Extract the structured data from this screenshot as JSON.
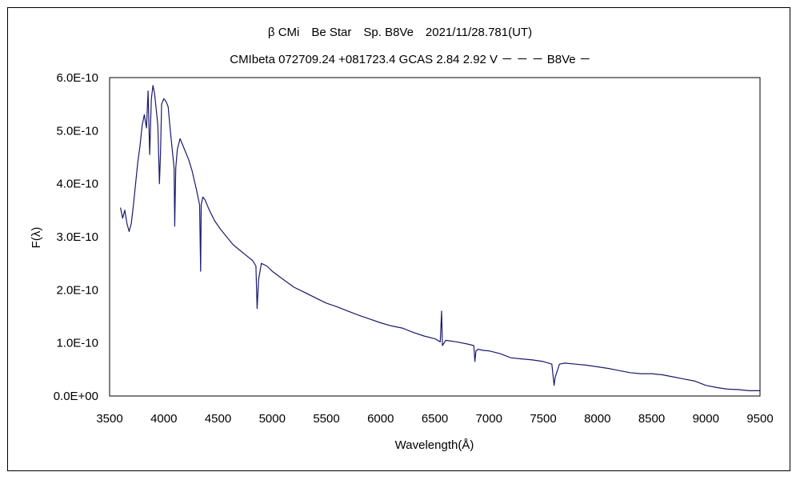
{
  "chart_data": {
    "type": "line",
    "title": "β CMi　Be Star　Sp. B8Ve　2021/11/28.781(UT)",
    "subtitle": "CMIbeta 072709.24 +081723.4 GCAS 2.84 2.92  V － － － B8Ve －",
    "xlabel": "Wavelength(Å)",
    "ylabel": "F(λ)",
    "xlim": [
      3500,
      9500
    ],
    "ylim": [
      0,
      6e-10
    ],
    "x_ticks": [
      "3500",
      "4000",
      "4500",
      "5000",
      "5500",
      "6000",
      "6500",
      "7000",
      "7500",
      "8000",
      "8500",
      "9000",
      "9500"
    ],
    "y_ticks": [
      "0.0E+00",
      "1.0E-10",
      "2.0E-10",
      "3.0E-10",
      "4.0E-10",
      "5.0E-10",
      "6.0E-10"
    ],
    "grid": false,
    "legend": "none",
    "line_color": "#1a1a6e",
    "series": [
      {
        "x": [
          3600,
          3620,
          3640,
          3660,
          3680,
          3700,
          3720,
          3740,
          3760,
          3780,
          3800,
          3820,
          3840,
          3855,
          3870,
          3885,
          3900,
          3915,
          3930,
          3945,
          3960,
          3970,
          3980,
          4000,
          4020,
          4040,
          4060,
          4080,
          4095,
          4101,
          4110,
          4125,
          4150,
          4170,
          4200,
          4230,
          4260,
          4300,
          4330,
          4340,
          4345,
          4360,
          4380,
          4420,
          4470,
          4520,
          4580,
          4640,
          4700,
          4760,
          4820,
          4850,
          4861,
          4875,
          4900,
          4950,
          5000,
          5100,
          5200,
          5300,
          5400,
          5500,
          5600,
          5700,
          5800,
          5900,
          6000,
          6100,
          6200,
          6300,
          6400,
          6500,
          6550,
          6563,
          6570,
          6600,
          6700,
          6800,
          6860,
          6870,
          6880,
          6900,
          6950,
          7000,
          7100,
          7200,
          7300,
          7400,
          7500,
          7580,
          7600,
          7610,
          7650,
          7700,
          7800,
          7900,
          8000,
          8100,
          8200,
          8300,
          8400,
          8500,
          8600,
          8700,
          8800,
          8900,
          9000,
          9100,
          9200,
          9300,
          9400,
          9500
        ],
        "y": [
          3.55e-10,
          3.35e-10,
          3.5e-10,
          3.25e-10,
          3.1e-10,
          3.25e-10,
          3.6e-10,
          4e-10,
          4.4e-10,
          4.7e-10,
          5.1e-10,
          5.3e-10,
          5.05e-10,
          5.75e-10,
          4.55e-10,
          5.6e-10,
          5.85e-10,
          5.7e-10,
          5.4e-10,
          5.1e-10,
          4e-10,
          4.6e-10,
          5.5e-10,
          5.6e-10,
          5.55e-10,
          5.45e-10,
          5e-10,
          4.6e-10,
          4.3e-10,
          3.2e-10,
          4.3e-10,
          4.65e-10,
          4.85e-10,
          4.75e-10,
          4.6e-10,
          4.45e-10,
          4.25e-10,
          3.9e-10,
          3.6e-10,
          2.35e-10,
          3.6e-10,
          3.75e-10,
          3.7e-10,
          3.5e-10,
          3.3e-10,
          3.15e-10,
          3e-10,
          2.85e-10,
          2.75e-10,
          2.65e-10,
          2.55e-10,
          2.45e-10,
          1.65e-10,
          2.2e-10,
          2.5e-10,
          2.45e-10,
          2.35e-10,
          2.2e-10,
          2.05e-10,
          1.95e-10,
          1.85e-10,
          1.75e-10,
          1.68e-10,
          1.6e-10,
          1.52e-10,
          1.45e-10,
          1.38e-10,
          1.32e-10,
          1.28e-10,
          1.2e-10,
          1.13e-10,
          1.08e-10,
          1.02e-10,
          1.6e-10,
          9.5e-11,
          1.05e-10,
          1.02e-10,
          9.8e-11,
          9.5e-11,
          6.5e-11,
          8.5e-11,
          8.8e-11,
          8.6e-11,
          8.5e-11,
          8e-11,
          7.2e-11,
          7e-11,
          6.8e-11,
          6.5e-11,
          6e-11,
          2e-11,
          3.5e-11,
          6e-11,
          6.2e-11,
          6e-11,
          5.8e-11,
          5.5e-11,
          5.2e-11,
          4.8e-11,
          4.4e-11,
          4.2e-11,
          4.2e-11,
          4e-11,
          3.6e-11,
          3.2e-11,
          2.8e-11,
          2e-11,
          1.6e-11,
          1.3e-11,
          1.2e-11,
          1e-11,
          1e-11
        ]
      }
    ]
  }
}
